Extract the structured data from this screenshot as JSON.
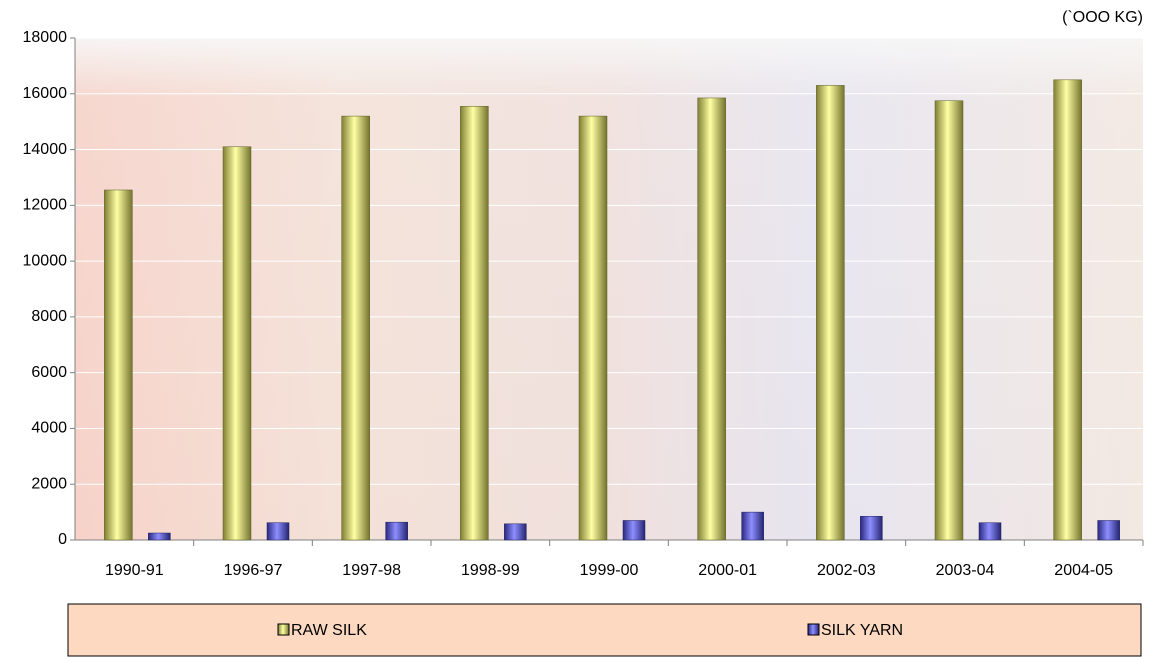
{
  "chart_data": {
    "type": "bar",
    "unit_label": "(`OOO KG)",
    "categories": [
      "1990-91",
      "1996-97",
      "1997-98",
      "1998-99",
      "1999-00",
      "2000-01",
      "2002-03",
      "2003-04",
      "2004-05"
    ],
    "series": [
      {
        "name": "RAW SILK",
        "color": "#e6e65a",
        "values": [
          12550,
          14100,
          15200,
          15550,
          15200,
          15850,
          16300,
          15750,
          16500
        ]
      },
      {
        "name": "SILK YARN",
        "color": "#4a4ae6",
        "values": [
          250,
          620,
          640,
          580,
          700,
          1000,
          850,
          620,
          700
        ]
      }
    ],
    "ylim": [
      0,
      18000
    ],
    "yticks": [
      0,
      2000,
      4000,
      6000,
      8000,
      10000,
      12000,
      14000,
      16000,
      18000
    ],
    "grid": true,
    "legend": "bottom"
  }
}
